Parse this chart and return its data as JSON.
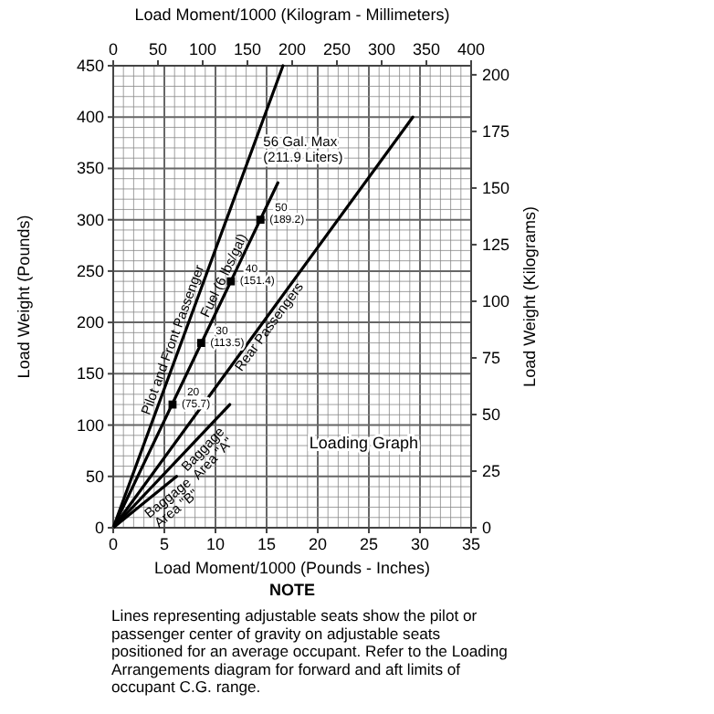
{
  "chart_data": {
    "type": "line",
    "title": "Loading Graph",
    "xlabel": "Load Moment/1000 (Pounds - Inches)",
    "ylabel": "Load Weight (Pounds)",
    "y2label": "Load Weight (Kilograms)",
    "x2label": "Load Moment/1000 (Kilogram - Millimeters)",
    "xlim": [
      0,
      35
    ],
    "xticks": [
      0,
      5,
      10,
      15,
      20,
      25,
      30,
      35
    ],
    "ylim": [
      0,
      450
    ],
    "yticks": [
      0,
      50,
      100,
      150,
      200,
      250,
      300,
      350,
      400,
      450
    ],
    "x2lim": [
      0,
      400
    ],
    "x2ticks": [
      0,
      50,
      100,
      150,
      200,
      250,
      300,
      350,
      400
    ],
    "y2lim": [
      0,
      204
    ],
    "y2ticks": [
      0,
      25,
      50,
      75,
      100,
      125,
      150,
      175,
      200
    ],
    "grid": true,
    "marker": "none",
    "line_style": "solid",
    "series": [
      {
        "name": "Pilot and Front Passenger",
        "color": "#000000",
        "x": [
          0,
          16.6
        ],
        "values": [
          0,
          450
        ]
      },
      {
        "name": "Fuel (6 lbs/gal)",
        "color": "#000000",
        "x": [
          0,
          16.1
        ],
        "values": [
          0,
          336
        ]
      },
      {
        "name": "Rear Passengers",
        "color": "#000000",
        "x": [
          0,
          29.3
        ],
        "values": [
          0,
          400
        ]
      },
      {
        "name": "Baggage Area \"A\"",
        "color": "#000000",
        "x": [
          0,
          11.4
        ],
        "values": [
          0,
          120
        ]
      },
      {
        "name": "Baggage Area \"B\"",
        "color": "#000000",
        "x": [
          0,
          6.2
        ],
        "values": [
          0,
          50
        ]
      },
      {
        "type": "scatter",
        "marker": "square",
        "color": "#000000",
        "x": [
          5.8,
          8.6,
          11.5,
          14.4
        ],
        "values": [
          120,
          180,
          240,
          300
        ]
      }
    ],
    "annotations": [
      {
        "text": "20 (75.7)",
        "x": 5.8,
        "y": 120
      },
      {
        "text": "30 (113.5)",
        "x": 8.6,
        "y": 180
      },
      {
        "text": "40 (151.4)",
        "x": 11.5,
        "y": 240
      },
      {
        "text": "50 (189.2)",
        "x": 14.4,
        "y": 300
      },
      {
        "text": "56 Gal. Max (211.9 Liters)",
        "x": 16.1,
        "y": 336
      },
      "NOTE",
      "Lines representing adjustable seats show the pilot or passenger center of gravity on adjustable seats positioned for an average occupant.  Refer to the Loading Arrangements diagram for forward and aft limits of occupant C.G. range."
    ]
  }
}
